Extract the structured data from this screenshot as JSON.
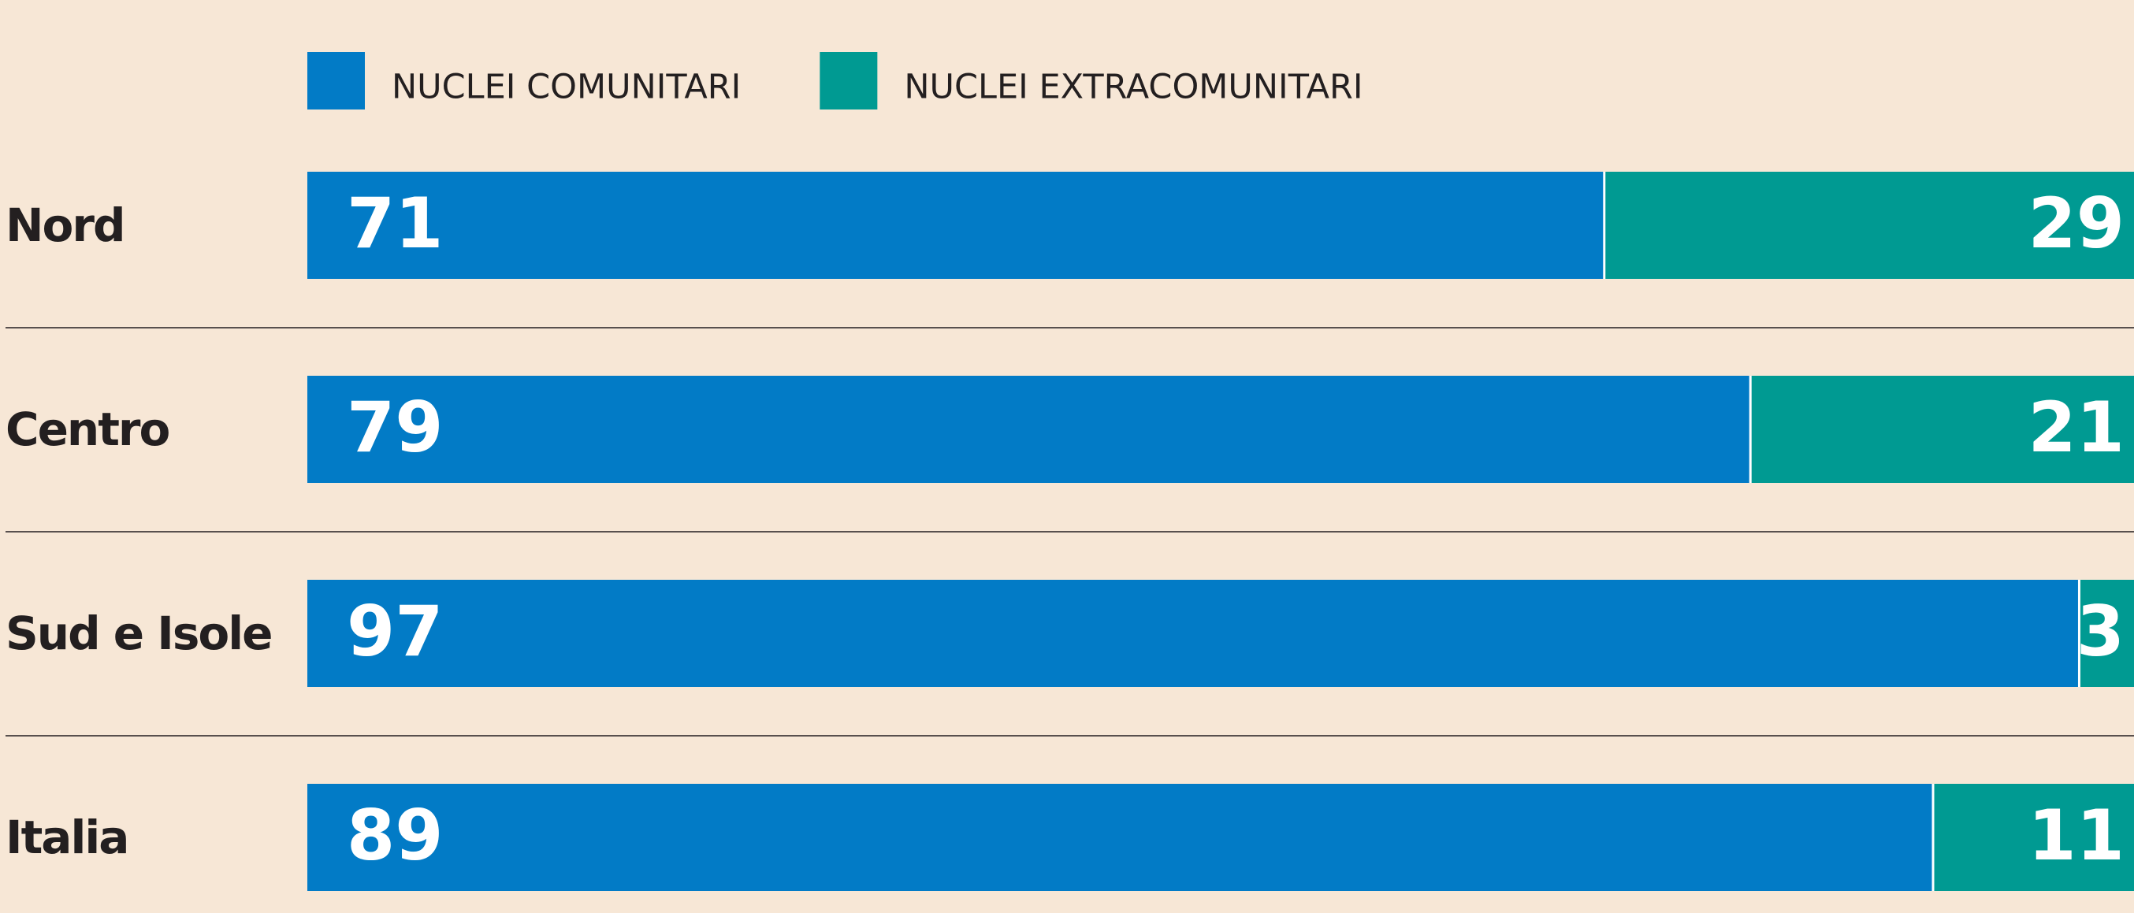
{
  "chart_data": {
    "type": "bar",
    "orientation": "horizontal",
    "stacked": true,
    "categories": [
      "Nord",
      "Centro",
      "Sud e Isole",
      "Italia"
    ],
    "series": [
      {
        "name": "NUCLEI COMUNITARI",
        "color": "#027bc6",
        "values": [
          71,
          79,
          97,
          89
        ]
      },
      {
        "name": "NUCLEI EXTRACOMUNITARI",
        "color": "#009a92",
        "values": [
          29,
          21,
          3,
          11
        ]
      }
    ],
    "xlim": [
      0,
      100
    ]
  }
}
